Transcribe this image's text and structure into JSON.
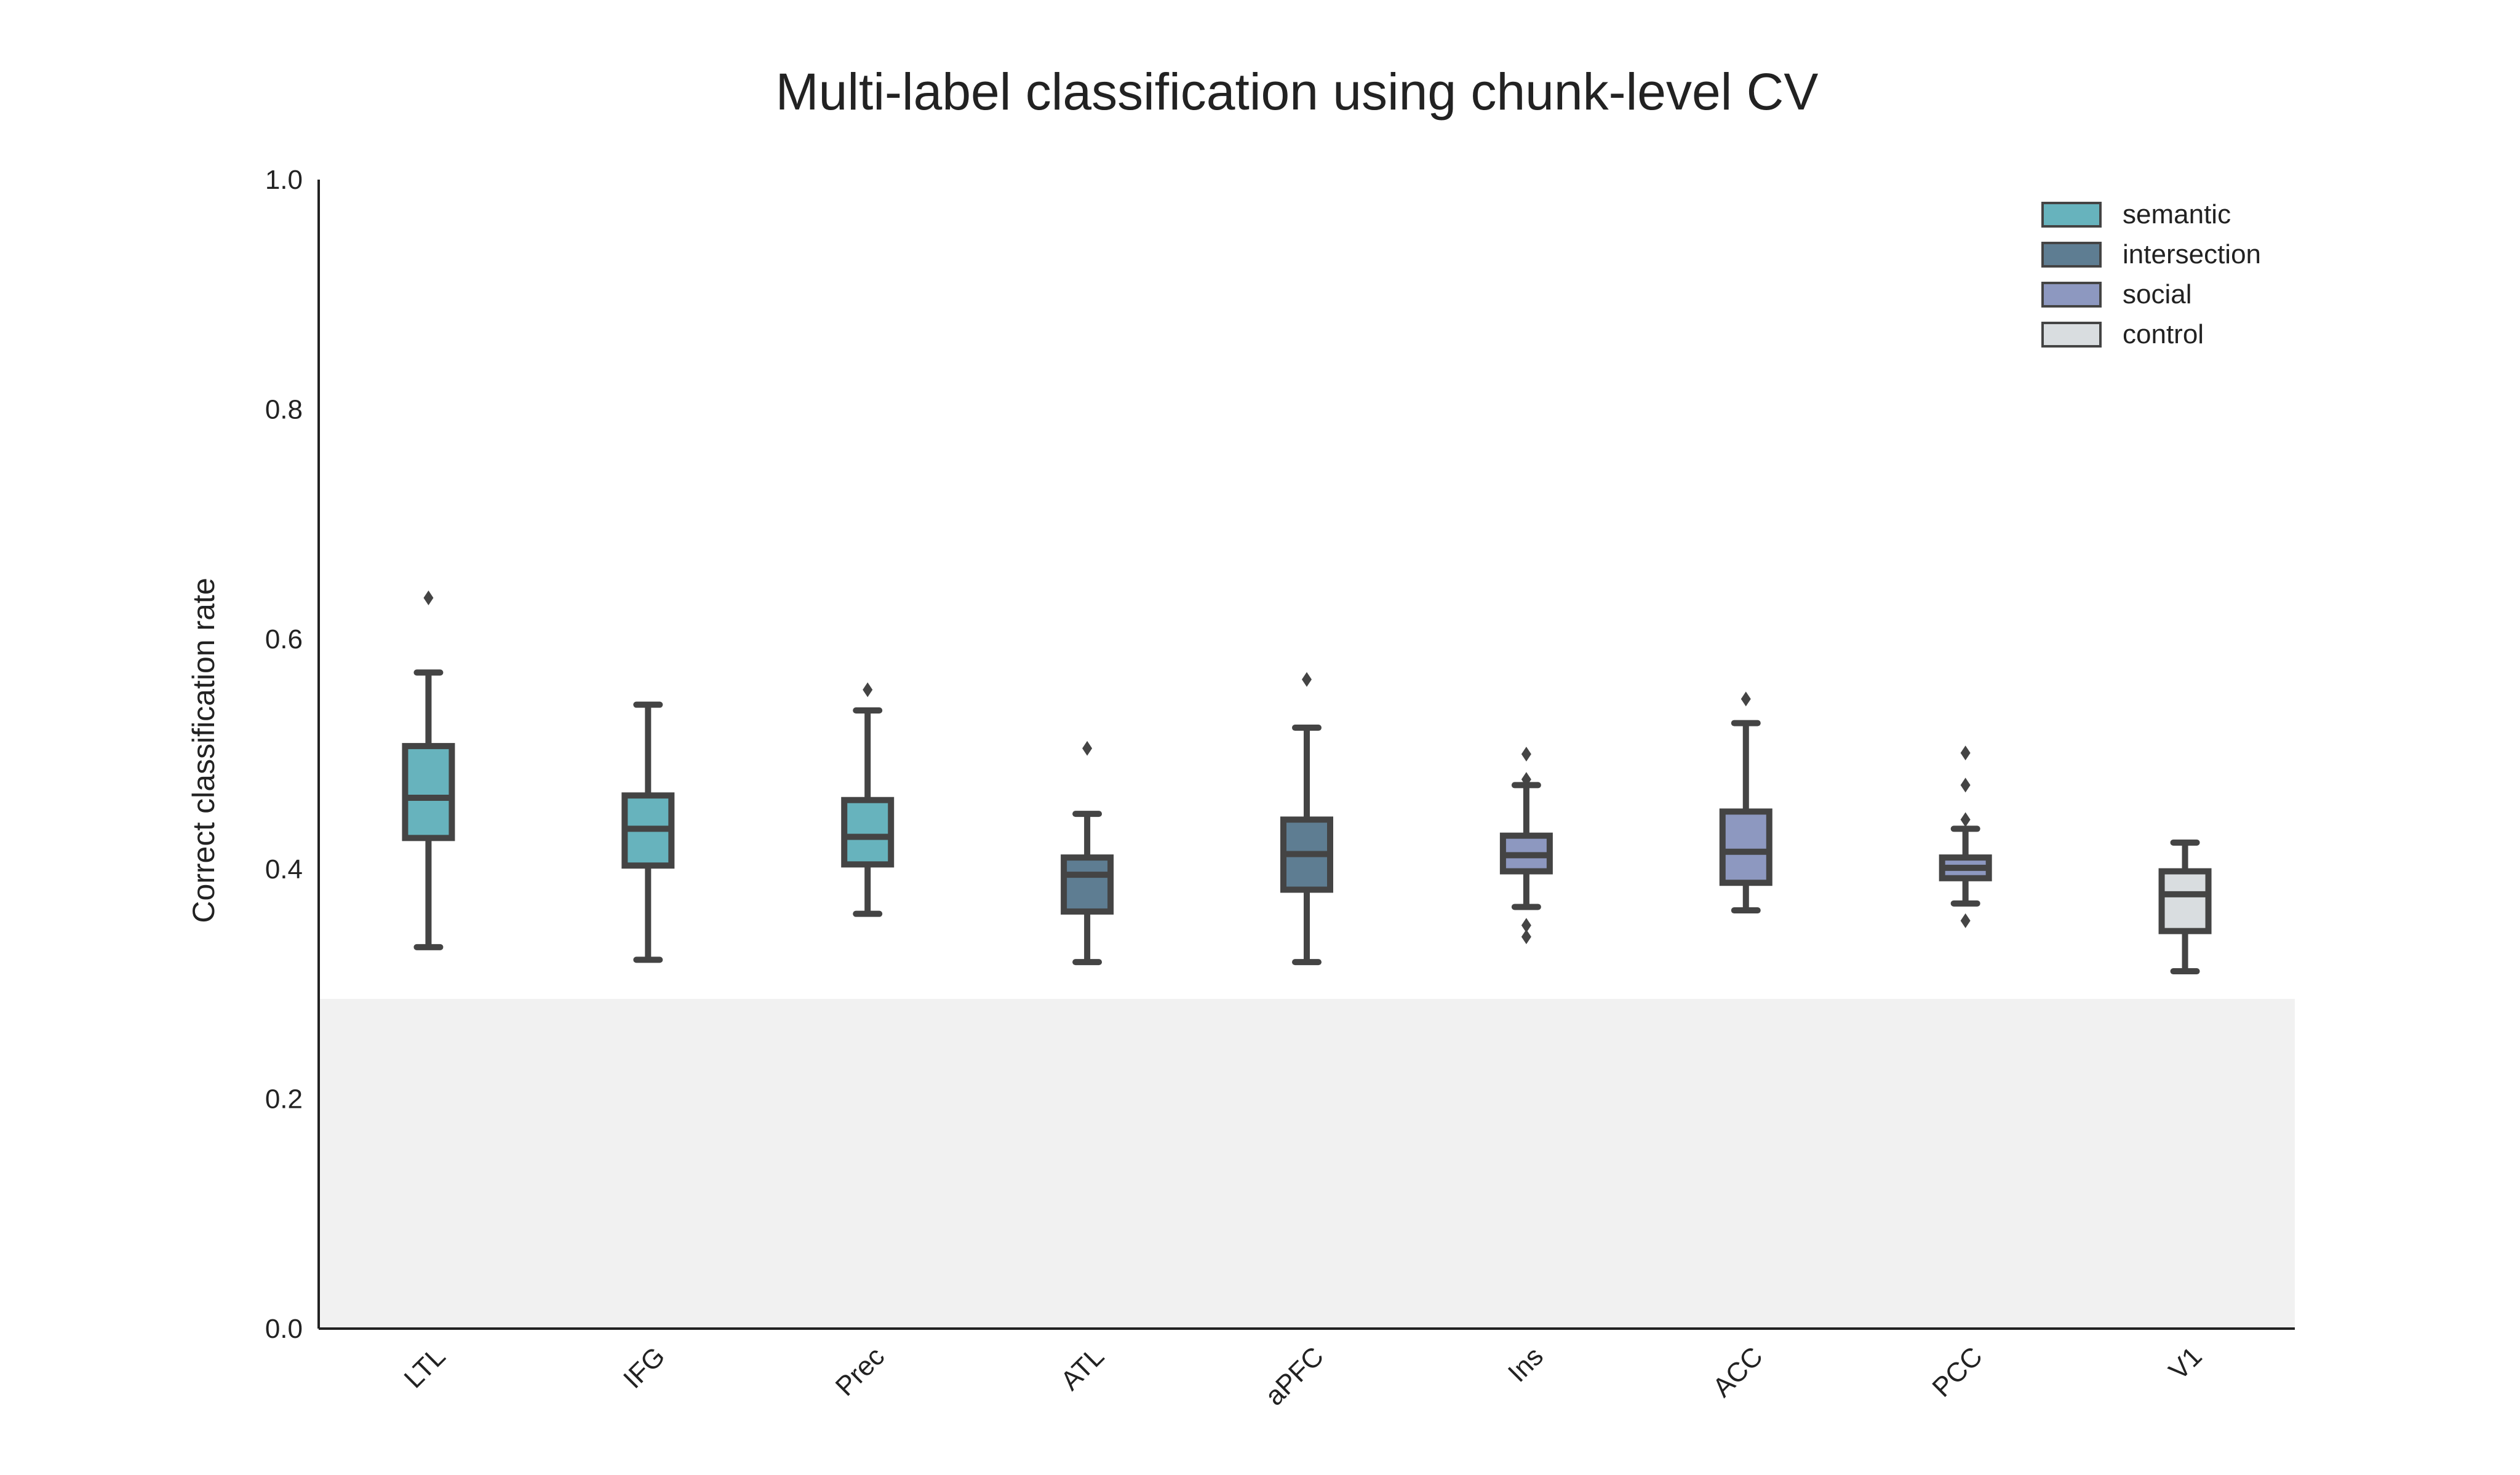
{
  "chart_data": {
    "type": "box",
    "title": "Multi-label classification using chunk-level CV",
    "xlabel": "",
    "ylabel": "Correct classification rate",
    "ylim": [
      0.0,
      1.0
    ],
    "yticks": [
      "0.0",
      "0.2",
      "0.4",
      "0.6",
      "0.8",
      "1.0"
    ],
    "chance_band": [
      0.0,
      0.287
    ],
    "chance_band_color": "#f1f1f1",
    "grid": false,
    "legend_position": "top-right",
    "legend": [
      {
        "label": "semantic",
        "color": "#67b3bd"
      },
      {
        "label": "intersection",
        "color": "#5e7d92"
      },
      {
        "label": "social",
        "color": "#8d98c0"
      },
      {
        "label": "control",
        "color": "#d9dde0"
      }
    ],
    "categories": [
      "LTL",
      "IFG",
      "Prec",
      "ATL",
      "aPFC",
      "Ins",
      "ACC",
      "PCC",
      "V1"
    ],
    "boxes": [
      {
        "label": "LTL",
        "group": "semantic",
        "whisker_low": 0.332,
        "q1": 0.427,
        "median": 0.462,
        "q3": 0.507,
        "whisker_high": 0.571,
        "outliers": [
          0.636
        ]
      },
      {
        "label": "IFG",
        "group": "semantic",
        "whisker_low": 0.321,
        "q1": 0.403,
        "median": 0.435,
        "q3": 0.464,
        "whisker_high": 0.543,
        "outliers": []
      },
      {
        "label": "Prec",
        "group": "semantic",
        "whisker_low": 0.361,
        "q1": 0.404,
        "median": 0.428,
        "q3": 0.46,
        "whisker_high": 0.538,
        "outliers": [
          0.556
        ]
      },
      {
        "label": "ATL",
        "group": "intersection",
        "whisker_low": 0.319,
        "q1": 0.363,
        "median": 0.395,
        "q3": 0.41,
        "whisker_high": 0.448,
        "outliers": [
          0.505
        ]
      },
      {
        "label": "aPFC",
        "group": "intersection",
        "whisker_low": 0.319,
        "q1": 0.382,
        "median": 0.413,
        "q3": 0.443,
        "whisker_high": 0.523,
        "outliers": [
          0.565
        ]
      },
      {
        "label": "Ins",
        "group": "social",
        "whisker_low": 0.367,
        "q1": 0.398,
        "median": 0.412,
        "q3": 0.429,
        "whisker_high": 0.473,
        "outliers": [
          0.341,
          0.351,
          0.478,
          0.5
        ]
      },
      {
        "label": "ACC",
        "group": "social",
        "whisker_low": 0.364,
        "q1": 0.388,
        "median": 0.415,
        "q3": 0.45,
        "whisker_high": 0.527,
        "outliers": [
          0.548
        ]
      },
      {
        "label": "PCC",
        "group": "social",
        "whisker_low": 0.37,
        "q1": 0.392,
        "median": 0.401,
        "q3": 0.41,
        "whisker_high": 0.435,
        "outliers": [
          0.355,
          0.443,
          0.473,
          0.501
        ]
      },
      {
        "label": "V1",
        "group": "control",
        "whisker_low": 0.311,
        "q1": 0.346,
        "median": 0.378,
        "q3": 0.398,
        "whisker_high": 0.423,
        "outliers": []
      }
    ]
  }
}
